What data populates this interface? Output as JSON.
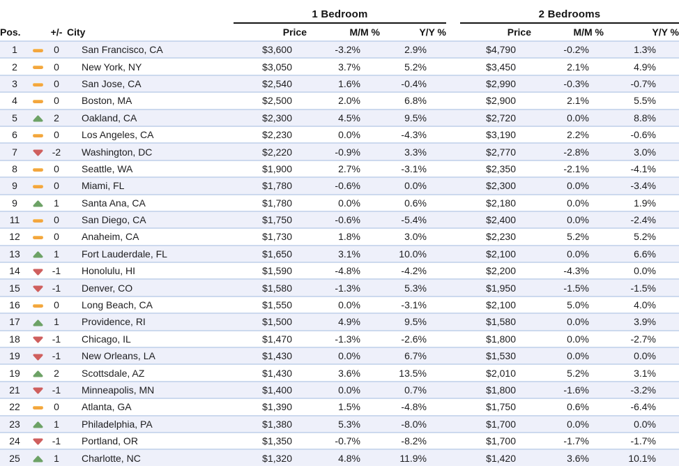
{
  "table": {
    "headers": {
      "pos": "Pos.",
      "change": "+/-",
      "city": "City",
      "group1": "1 Bedroom",
      "group2": "2 Bedrooms",
      "price": "Price",
      "mm": "M/M %",
      "yy": "Y/Y %"
    }
  },
  "colors": {
    "up": "#6da266",
    "down": "#cf5f5e",
    "flat": "#f3a63e",
    "stripe": "#eef0fa",
    "row_line": "#ccd9ee",
    "group_underline": "#141414",
    "text": "#1d1d1f"
  },
  "chart_data": {
    "type": "table",
    "column_groups": [
      "1 Bedroom",
      "2 Bedrooms"
    ],
    "columns": [
      "Pos.",
      "+/-",
      "City",
      "1 Bedroom Price",
      "1 Bedroom M/M %",
      "1 Bedroom Y/Y %",
      "2 Bedrooms Price",
      "2 Bedrooms M/M %",
      "2 Bedrooms Y/Y %"
    ],
    "rows": [
      {
        "pos": "1",
        "trend": "flat",
        "change": "0",
        "city": "San Francisco, CA",
        "br1_price": "$3,600",
        "br1_mm": "-3.2%",
        "br1_yy": "2.9%",
        "br2_price": "$4,790",
        "br2_mm": "-0.2%",
        "br2_yy": "1.3%"
      },
      {
        "pos": "2",
        "trend": "flat",
        "change": "0",
        "city": "New York, NY",
        "br1_price": "$3,050",
        "br1_mm": "3.7%",
        "br1_yy": "5.2%",
        "br2_price": "$3,450",
        "br2_mm": "2.1%",
        "br2_yy": "4.9%"
      },
      {
        "pos": "3",
        "trend": "flat",
        "change": "0",
        "city": "San Jose, CA",
        "br1_price": "$2,540",
        "br1_mm": "1.6%",
        "br1_yy": "-0.4%",
        "br2_price": "$2,990",
        "br2_mm": "-0.3%",
        "br2_yy": "-0.7%"
      },
      {
        "pos": "4",
        "trend": "flat",
        "change": "0",
        "city": "Boston, MA",
        "br1_price": "$2,500",
        "br1_mm": "2.0%",
        "br1_yy": "6.8%",
        "br2_price": "$2,900",
        "br2_mm": "2.1%",
        "br2_yy": "5.5%"
      },
      {
        "pos": "5",
        "trend": "up",
        "change": "2",
        "city": "Oakland, CA",
        "br1_price": "$2,300",
        "br1_mm": "4.5%",
        "br1_yy": "9.5%",
        "br2_price": "$2,720",
        "br2_mm": "0.0%",
        "br2_yy": "8.8%"
      },
      {
        "pos": "6",
        "trend": "flat",
        "change": "0",
        "city": "Los Angeles, CA",
        "br1_price": "$2,230",
        "br1_mm": "0.0%",
        "br1_yy": "-4.3%",
        "br2_price": "$3,190",
        "br2_mm": "2.2%",
        "br2_yy": "-0.6%"
      },
      {
        "pos": "7",
        "trend": "down",
        "change": "-2",
        "city": "Washington, DC",
        "br1_price": "$2,220",
        "br1_mm": "-0.9%",
        "br1_yy": "3.3%",
        "br2_price": "$2,770",
        "br2_mm": "-2.8%",
        "br2_yy": "3.0%"
      },
      {
        "pos": "8",
        "trend": "flat",
        "change": "0",
        "city": "Seattle, WA",
        "br1_price": "$1,900",
        "br1_mm": "2.7%",
        "br1_yy": "-3.1%",
        "br2_price": "$2,350",
        "br2_mm": "-2.1%",
        "br2_yy": "-4.1%"
      },
      {
        "pos": "9",
        "trend": "flat",
        "change": "0",
        "city": "Miami, FL",
        "br1_price": "$1,780",
        "br1_mm": "-0.6%",
        "br1_yy": "0.0%",
        "br2_price": "$2,300",
        "br2_mm": "0.0%",
        "br2_yy": "-3.4%"
      },
      {
        "pos": "9",
        "trend": "up",
        "change": "1",
        "city": "Santa Ana, CA",
        "br1_price": "$1,780",
        "br1_mm": "0.0%",
        "br1_yy": "0.6%",
        "br2_price": "$2,180",
        "br2_mm": "0.0%",
        "br2_yy": "1.9%"
      },
      {
        "pos": "11",
        "trend": "flat",
        "change": "0",
        "city": "San Diego, CA",
        "br1_price": "$1,750",
        "br1_mm": "-0.6%",
        "br1_yy": "-5.4%",
        "br2_price": "$2,400",
        "br2_mm": "0.0%",
        "br2_yy": "-2.4%"
      },
      {
        "pos": "12",
        "trend": "flat",
        "change": "0",
        "city": "Anaheim, CA",
        "br1_price": "$1,730",
        "br1_mm": "1.8%",
        "br1_yy": "3.0%",
        "br2_price": "$2,230",
        "br2_mm": "5.2%",
        "br2_yy": "5.2%"
      },
      {
        "pos": "13",
        "trend": "up",
        "change": "1",
        "city": "Fort Lauderdale, FL",
        "br1_price": "$1,650",
        "br1_mm": "3.1%",
        "br1_yy": "10.0%",
        "br2_price": "$2,100",
        "br2_mm": "0.0%",
        "br2_yy": "6.6%"
      },
      {
        "pos": "14",
        "trend": "down",
        "change": "-1",
        "city": "Honolulu, HI",
        "br1_price": "$1,590",
        "br1_mm": "-4.8%",
        "br1_yy": "-4.2%",
        "br2_price": "$2,200",
        "br2_mm": "-4.3%",
        "br2_yy": "0.0%"
      },
      {
        "pos": "15",
        "trend": "down",
        "change": "-1",
        "city": "Denver, CO",
        "br1_price": "$1,580",
        "br1_mm": "-1.3%",
        "br1_yy": "5.3%",
        "br2_price": "$1,950",
        "br2_mm": "-1.5%",
        "br2_yy": "-1.5%"
      },
      {
        "pos": "16",
        "trend": "flat",
        "change": "0",
        "city": "Long Beach, CA",
        "br1_price": "$1,550",
        "br1_mm": "0.0%",
        "br1_yy": "-3.1%",
        "br2_price": "$2,100",
        "br2_mm": "5.0%",
        "br2_yy": "4.0%"
      },
      {
        "pos": "17",
        "trend": "up",
        "change": "1",
        "city": "Providence, RI",
        "br1_price": "$1,500",
        "br1_mm": "4.9%",
        "br1_yy": "9.5%",
        "br2_price": "$1,580",
        "br2_mm": "0.0%",
        "br2_yy": "3.9%"
      },
      {
        "pos": "18",
        "trend": "down",
        "change": "-1",
        "city": "Chicago, IL",
        "br1_price": "$1,470",
        "br1_mm": "-1.3%",
        "br1_yy": "-2.6%",
        "br2_price": "$1,800",
        "br2_mm": "0.0%",
        "br2_yy": "-2.7%"
      },
      {
        "pos": "19",
        "trend": "down",
        "change": "-1",
        "city": "New Orleans, LA",
        "br1_price": "$1,430",
        "br1_mm": "0.0%",
        "br1_yy": "6.7%",
        "br2_price": "$1,530",
        "br2_mm": "0.0%",
        "br2_yy": "0.0%"
      },
      {
        "pos": "19",
        "trend": "up",
        "change": "2",
        "city": "Scottsdale, AZ",
        "br1_price": "$1,430",
        "br1_mm": "3.6%",
        "br1_yy": "13.5%",
        "br2_price": "$2,010",
        "br2_mm": "5.2%",
        "br2_yy": "3.1%"
      },
      {
        "pos": "21",
        "trend": "down",
        "change": "-1",
        "city": "Minneapolis, MN",
        "br1_price": "$1,400",
        "br1_mm": "0.0%",
        "br1_yy": "0.7%",
        "br2_price": "$1,800",
        "br2_mm": "-1.6%",
        "br2_yy": "-3.2%"
      },
      {
        "pos": "22",
        "trend": "flat",
        "change": "0",
        "city": "Atlanta, GA",
        "br1_price": "$1,390",
        "br1_mm": "1.5%",
        "br1_yy": "-4.8%",
        "br2_price": "$1,750",
        "br2_mm": "0.6%",
        "br2_yy": "-6.4%"
      },
      {
        "pos": "23",
        "trend": "up",
        "change": "1",
        "city": "Philadelphia, PA",
        "br1_price": "$1,380",
        "br1_mm": "5.3%",
        "br1_yy": "-8.0%",
        "br2_price": "$1,700",
        "br2_mm": "0.0%",
        "br2_yy": "0.0%"
      },
      {
        "pos": "24",
        "trend": "down",
        "change": "-1",
        "city": "Portland, OR",
        "br1_price": "$1,350",
        "br1_mm": "-0.7%",
        "br1_yy": "-8.2%",
        "br2_price": "$1,700",
        "br2_mm": "-1.7%",
        "br2_yy": "-1.7%"
      },
      {
        "pos": "25",
        "trend": "up",
        "change": "1",
        "city": "Charlotte, NC",
        "br1_price": "$1,320",
        "br1_mm": "4.8%",
        "br1_yy": "11.9%",
        "br2_price": "$1,420",
        "br2_mm": "3.6%",
        "br2_yy": "10.1%"
      }
    ]
  }
}
